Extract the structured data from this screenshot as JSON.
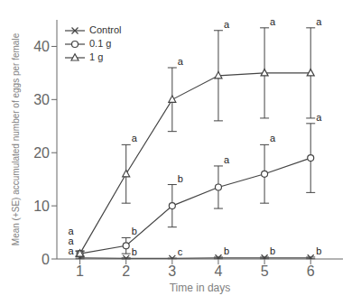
{
  "chart_data": {
    "type": "line",
    "xlabel": "Time in days",
    "ylabel": "Mean (+SE) accumulated number of eggs per female",
    "x": [
      1,
      2,
      3,
      4,
      5,
      6
    ],
    "xlim": [
      0.5,
      6.7
    ],
    "xticks": [
      1,
      2,
      3,
      4,
      5,
      6
    ],
    "ylim": [
      0,
      45
    ],
    "yticks": [
      0,
      10,
      20,
      30,
      40
    ],
    "grid": false,
    "legend": "upper left",
    "series": [
      {
        "name": "Control",
        "color": "#444444",
        "marker": "x",
        "line_style": "solid",
        "values": [
          0.2,
          0.1,
          0.1,
          0.2,
          0.2,
          0.2
        ],
        "se": [
          0.15,
          0.1,
          0.05,
          0.15,
          0.15,
          0.15
        ],
        "letters": [
          "a",
          "b",
          "c",
          "b",
          "b",
          "b"
        ]
      },
      {
        "name": "0.1 g",
        "color": "#444444",
        "marker": "circle",
        "line_style": "solid",
        "values": [
          1.0,
          2.5,
          10.0,
          13.5,
          16.0,
          19.0
        ],
        "se": [
          0.5,
          1.5,
          4.0,
          4.0,
          5.5,
          6.5
        ],
        "letters": [
          "a",
          "b",
          "b",
          "a",
          "a",
          "a"
        ]
      },
      {
        "name": "1 g",
        "color": "#444444",
        "marker": "triangle",
        "line_style": "solid",
        "values": [
          1.0,
          16.0,
          30.0,
          34.5,
          35.0,
          35.0
        ],
        "se": [
          0.5,
          5.5,
          6.0,
          8.5,
          8.5,
          8.5
        ],
        "letters": [
          "a",
          "a",
          "a",
          "a",
          "a",
          "a"
        ]
      }
    ]
  }
}
